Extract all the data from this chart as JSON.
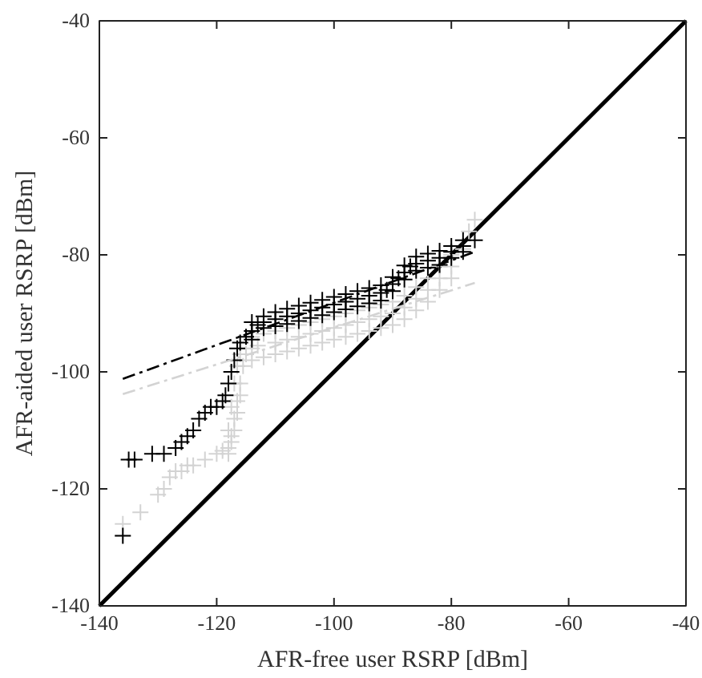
{
  "chart_data": {
    "type": "scatter",
    "xlabel": "AFR-free user RSRP [dBm]",
    "ylabel": "AFR-aided user RSRP [dBm]",
    "xlim": [
      -140,
      -40
    ],
    "ylim": [
      -140,
      -40
    ],
    "xticks": [
      -140,
      -120,
      -100,
      -80,
      -60,
      -40
    ],
    "yticks": [
      -140,
      -120,
      -100,
      -80,
      -60,
      -40
    ],
    "grid": false,
    "series": [
      {
        "type": "line",
        "marker": "none",
        "color": "#000000",
        "line_style": "solid",
        "x": [
          -140,
          -40
        ],
        "values": [
          -140,
          -40
        ]
      },
      {
        "color": "#d3d3d3",
        "marker": "cross",
        "x": [
          -136,
          -136,
          -133,
          -130,
          -129,
          -128,
          -127,
          -126,
          -125,
          -124,
          -122,
          -120,
          -119,
          -118,
          -117.5,
          -117,
          -116.5,
          -116,
          -115.5,
          -115,
          -114,
          -113,
          -110,
          -108,
          -106,
          -104,
          -102,
          -100,
          -98,
          -96,
          -94,
          -92,
          -90,
          -88,
          -86,
          -84,
          -82,
          -80,
          -78,
          -77,
          -76,
          -114,
          -112,
          -110,
          -108,
          -106,
          -104,
          -102,
          -100,
          -98,
          -96,
          -94,
          -92,
          -90,
          -88,
          -86,
          -84,
          -82,
          -80,
          -114,
          -112,
          -110,
          -108,
          -106,
          -104,
          -102,
          -100,
          -98,
          -96,
          -94,
          -92,
          -90,
          -88,
          -86,
          -84,
          -82,
          -80,
          -118,
          -117.5,
          -117,
          -116.5,
          -116,
          -118,
          -117.5,
          -117,
          -116.5,
          -116
        ],
        "values": [
          -126,
          -128,
          -124,
          -121,
          -120,
          -118,
          -117,
          -117,
          -116,
          -116,
          -115,
          -114,
          -113.5,
          -113,
          -111,
          -108,
          -105,
          -102,
          -99,
          -97,
          -96,
          -95.5,
          -95,
          -94.5,
          -94,
          -93.5,
          -93,
          -92.5,
          -92,
          -91.5,
          -91,
          -90.5,
          -90,
          -89,
          -87.5,
          -86,
          -84,
          -82,
          -79,
          -76,
          -74,
          -94,
          -93.5,
          -93,
          -92.5,
          -92,
          -91.5,
          -91,
          -90.5,
          -90,
          -89.5,
          -89,
          -88.5,
          -88,
          -87,
          -85.5,
          -84,
          -82,
          -80,
          -98,
          -97.5,
          -97,
          -96.5,
          -96,
          -95.5,
          -95,
          -94.5,
          -94,
          -93.5,
          -93,
          -92.5,
          -92,
          -91,
          -89.5,
          -88,
          -86,
          -84,
          -110,
          -106,
          -102,
          -99,
          -97,
          -114,
          -112,
          -110,
          -107,
          -104
        ]
      },
      {
        "color": "#000000",
        "marker": "cross",
        "x": [
          -136,
          -135,
          -134,
          -131,
          -129,
          -127,
          -126,
          -125,
          -124,
          -123,
          -122,
          -121,
          -120,
          -119,
          -118.5,
          -118,
          -117.5,
          -117,
          -116.5,
          -116,
          -115,
          -114,
          -113,
          -112,
          -110,
          -108,
          -106,
          -104,
          -102,
          -100,
          -98,
          -96,
          -94,
          -92,
          -91,
          -90,
          -89,
          -88,
          -87,
          -86,
          -84,
          -82,
          -80,
          -78,
          -76,
          -114,
          -112,
          -110,
          -108,
          -106,
          -104,
          -102,
          -100,
          -98,
          -96,
          -94,
          -92,
          -90,
          -88,
          -86,
          -84,
          -82,
          -80,
          -78,
          -114,
          -112,
          -110,
          -108,
          -106,
          -104,
          -102,
          -100,
          -98,
          -96,
          -94,
          -92,
          -90,
          -88,
          -86,
          -84,
          -82,
          -80,
          -78
        ],
        "values": [
          -128,
          -115,
          -115,
          -114,
          -114,
          -113,
          -112,
          -111,
          -110,
          -108,
          -107,
          -106,
          -106,
          -105,
          -104,
          -102,
          -100,
          -98,
          -96,
          -95,
          -94,
          -93,
          -92,
          -91.5,
          -91,
          -90.5,
          -90,
          -89.5,
          -89,
          -88.5,
          -88,
          -87.5,
          -87,
          -86.5,
          -86,
          -85,
          -84,
          -83,
          -82,
          -81.5,
          -81,
          -80.5,
          -79.5,
          -78.5,
          -77.5,
          -91.5,
          -90.5,
          -89.8,
          -89.2,
          -88.7,
          -88.2,
          -87.7,
          -87.2,
          -86.7,
          -86.2,
          -85.7,
          -85.2,
          -83.8,
          -81.8,
          -80.3,
          -79.8,
          -79.3,
          -78.5,
          -77.5,
          -94.5,
          -92.5,
          -92.2,
          -91.8,
          -91.3,
          -90.8,
          -90.3,
          -89.8,
          -89.3,
          -88.8,
          -88.3,
          -87.8,
          -86.2,
          -84.2,
          -82.7,
          -82.2,
          -81.7,
          -80.5,
          -79.5
        ]
      },
      {
        "type": "line",
        "marker": "none",
        "color": "#000000",
        "line_style": "dashdot",
        "x": [
          -136,
          -76
        ],
        "values": [
          -101.2,
          -79.5
        ]
      },
      {
        "type": "line",
        "marker": "none",
        "color": "#d3d3d3",
        "line_style": "dashdot",
        "x": [
          -136,
          -76
        ],
        "values": [
          -103.8,
          -84.8
        ]
      }
    ]
  }
}
